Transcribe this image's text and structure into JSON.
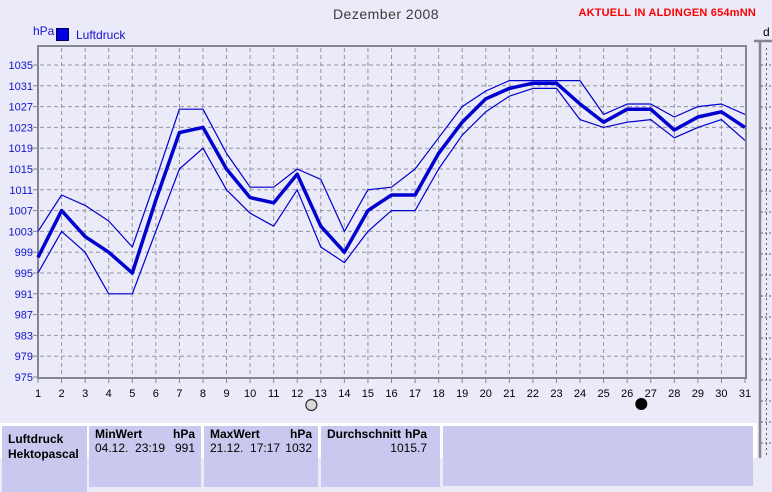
{
  "header": {
    "title": "Dezember 2008",
    "station": "AKTUELL IN ALDINGEN 654mNN"
  },
  "right_panel": {
    "label": "d"
  },
  "chart_data": {
    "type": "line",
    "title": "Dezember 2008",
    "y_unit": "hPa",
    "legend_label": "Luftdruck",
    "line_color": "#0000cf",
    "grid": "dashed",
    "xlim": [
      1,
      31
    ],
    "ylim": [
      975,
      1035
    ],
    "y_tick_step": 4,
    "y_ticks": [
      975,
      979,
      983,
      987,
      991,
      995,
      999,
      1003,
      1007,
      1011,
      1015,
      1019,
      1023,
      1027,
      1031,
      1035
    ],
    "x_ticks": [
      1,
      2,
      3,
      4,
      5,
      6,
      7,
      8,
      9,
      10,
      11,
      12,
      13,
      14,
      15,
      16,
      17,
      18,
      19,
      20,
      21,
      22,
      23,
      24,
      25,
      26,
      27,
      28,
      29,
      30,
      31
    ],
    "series": [
      {
        "name": "Luftdruck Durchschnitt",
        "role": "average",
        "stroke": "bold",
        "values": [
          998,
          1007,
          1002,
          999,
          995,
          1009,
          1022,
          1023,
          1015,
          1009.5,
          1008.5,
          1014,
          1004,
          999,
          1007,
          1010,
          1010,
          1018,
          1024,
          1028.5,
          1030.5,
          1031.5,
          1031.5,
          1027.5,
          1024,
          1026.5,
          1026.5,
          1022.5,
          1025,
          1026,
          1023
        ]
      },
      {
        "name": "Maximum",
        "role": "upper-envelope",
        "stroke": "thin",
        "values": [
          1003,
          1010,
          1008,
          1005,
          1000,
          1013,
          1026.5,
          1026.5,
          1018,
          1011.5,
          1011.5,
          1015,
          1013,
          1003,
          1011,
          1011.5,
          1015,
          1021,
          1027,
          1030,
          1032,
          1032,
          1032,
          1032,
          1025.5,
          1027.5,
          1027.5,
          1025,
          1027,
          1027.5,
          1025.5
        ]
      },
      {
        "name": "Minimum",
        "role": "lower-envelope",
        "stroke": "thin",
        "values": [
          995,
          1003,
          999,
          991,
          991,
          1003,
          1015,
          1019,
          1011,
          1006.5,
          1004,
          1011,
          1000,
          997,
          1003,
          1007,
          1007,
          1015,
          1021.5,
          1026,
          1029,
          1030.5,
          1030.5,
          1024.5,
          1023,
          1024,
          1024.5,
          1021,
          1023,
          1024.5,
          1020.5
        ]
      }
    ],
    "moon_markers": [
      {
        "day": 12.6,
        "phase": "full-moon",
        "symbol": "open-circle"
      },
      {
        "day": 26.6,
        "phase": "new-moon",
        "symbol": "filled-circle"
      }
    ]
  },
  "table": {
    "row_label": "Luftdruck",
    "row_label_line2": "Hektopascal",
    "min": {
      "header": "MinWert",
      "unit": "hPa",
      "datetime": "04.12.  23:19",
      "value": "991"
    },
    "max": {
      "header": "MaxWert",
      "unit": "hPa",
      "datetime": "21.12.  17:17",
      "value": "1032"
    },
    "avg": {
      "header": "Durchschnitt",
      "unit": "hPa",
      "value": "1015.7"
    }
  }
}
